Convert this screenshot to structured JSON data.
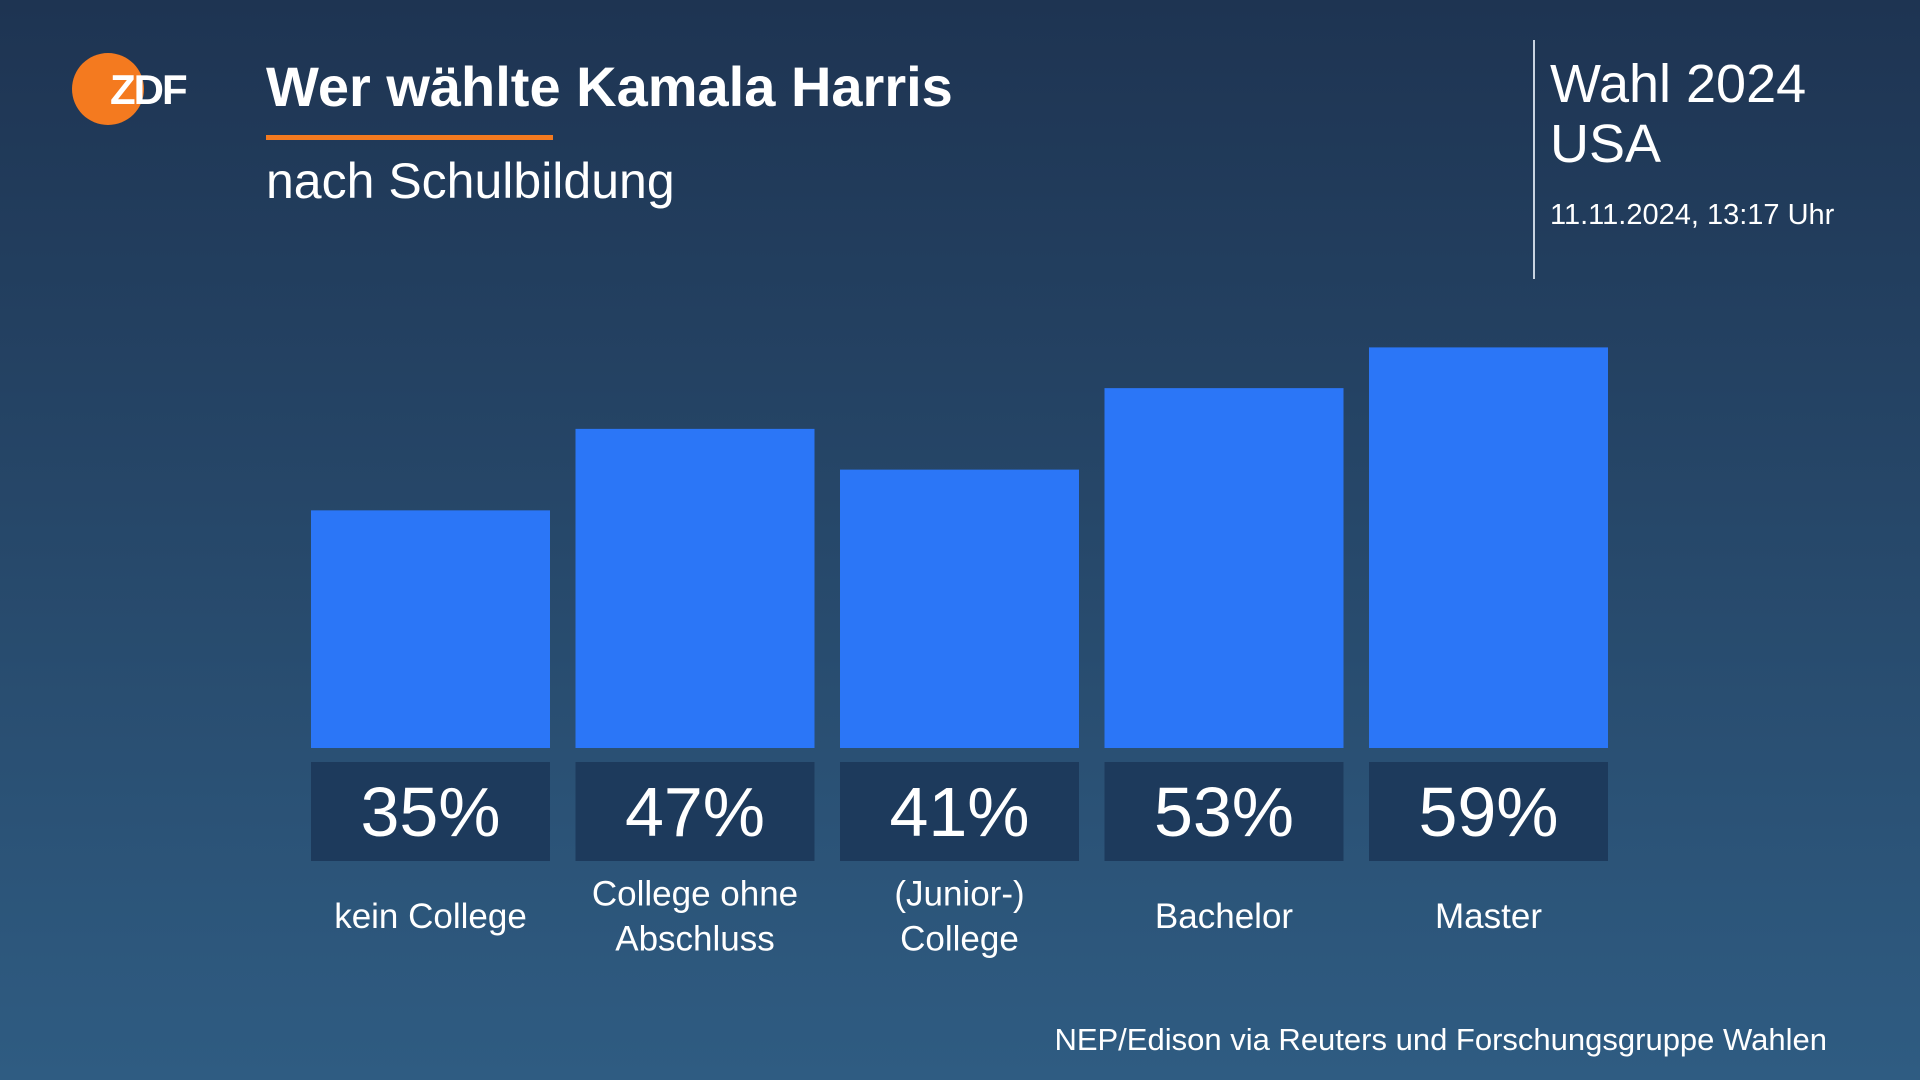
{
  "logo": "ZDF",
  "header": {
    "title": "Wer wählte Kamala Harris",
    "subtitle": "nach Schulbildung"
  },
  "badge": {
    "line1": "Wahl 2024",
    "line2": "USA",
    "date": "11.11.2024, 13:17 Uhr"
  },
  "source": "NEP/Edison via Reuters und Forschungsgruppe Wahlen",
  "chart_data": {
    "type": "bar",
    "categories": [
      [
        "kein College"
      ],
      [
        "College ohne",
        "Abschluss"
      ],
      [
        "(Junior-)",
        "College"
      ],
      [
        "Bachelor"
      ],
      [
        "Master"
      ]
    ],
    "values": [
      35,
      47,
      41,
      53,
      59
    ],
    "value_labels": [
      "35%",
      "47%",
      "41%",
      "53%",
      "59%"
    ],
    "color": "#2b76f7"
  }
}
